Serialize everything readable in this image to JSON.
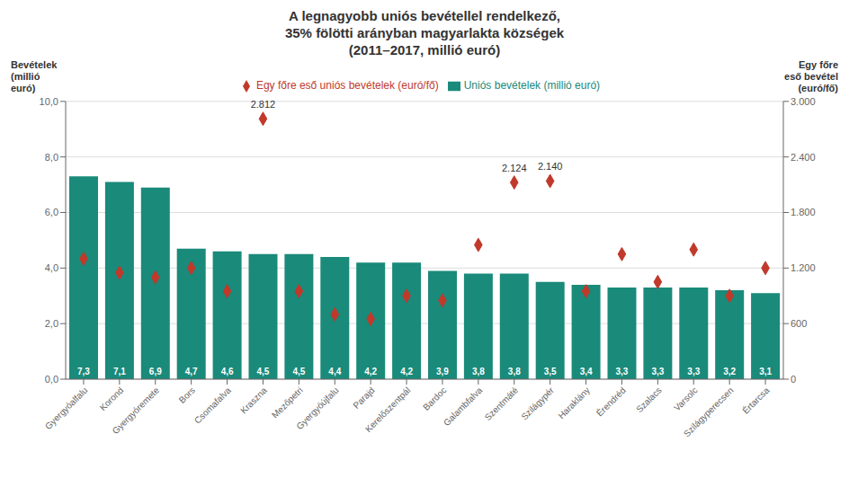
{
  "chart_data": {
    "type": "bar",
    "title": "A legnagyobb uniós bevétellel rendelkező,\n35% fölötti arányban magyarlakta községek\n(2011–2017, millió euró)",
    "categories": [
      "Gyergyóalfalu",
      "Korond",
      "Gyergyóremete",
      "Bors",
      "Csomafalva",
      "Kraszna",
      "Mezőpetri",
      "Gyergyóújfalu",
      "Parajd",
      "Kerelőszentpál",
      "Bardoc",
      "Galambfalva",
      "Szentmáté",
      "Szilágypér",
      "Haraklány",
      "Érendréd",
      "Szalacs",
      "Varsolc",
      "Szilágyperecsen",
      "Értarcsa"
    ],
    "series": [
      {
        "name": "Uniós bevételek (millió euró)",
        "type": "bar",
        "color": "#1a8a7a",
        "values": [
          7.3,
          7.1,
          6.9,
          4.7,
          4.6,
          4.5,
          4.5,
          4.4,
          4.2,
          4.2,
          3.9,
          3.8,
          3.8,
          3.5,
          3.4,
          3.3,
          3.3,
          3.3,
          3.2,
          3.1
        ],
        "value_labels": [
          "7,3",
          "7,1",
          "6,9",
          "4,7",
          "4,6",
          "4,5",
          "4,5",
          "4,4",
          "4,2",
          "4,2",
          "3,9",
          "3,8",
          "3,8",
          "3,5",
          "3,4",
          "3,3",
          "3,3",
          "3,3",
          "3,2",
          "3,1"
        ]
      },
      {
        "name": "Egy főre eső uniós bevételek (euró/fő)",
        "type": "scatter",
        "marker": "diamond",
        "color": "#c0392b",
        "axis": "y2",
        "values": [
          1300,
          1150,
          1100,
          1200,
          950,
          2812,
          950,
          700,
          650,
          900,
          850,
          1450,
          2124,
          2140,
          950,
          1350,
          1050,
          1400,
          900,
          1200
        ]
      }
    ],
    "data_labels": true,
    "annotations": [
      {
        "category": "Kraszna",
        "value": 2812,
        "label": "2.812"
      },
      {
        "category": "Szentmáté",
        "value": 2124,
        "label": "2.124"
      },
      {
        "category": "Szilágypér",
        "value": 2140,
        "label": "2.140"
      }
    ],
    "ylabel": "Bevételek\n(millió\neuró)",
    "y2label": "Egy főre\neső bevétel\n(euró/fő)",
    "ylim": [
      0,
      10.0
    ],
    "yticks": [
      {
        "value": 0.0,
        "label": "0,0"
      },
      {
        "value": 2.0,
        "label": "2,0"
      },
      {
        "value": 4.0,
        "label": "4,0"
      },
      {
        "value": 6.0,
        "label": "6,0"
      },
      {
        "value": 8.0,
        "label": "8,0"
      },
      {
        "value": 10.0,
        "label": "10,0"
      }
    ],
    "y2lim": [
      0,
      3000
    ],
    "y2ticks": [
      0,
      600,
      {
        "value": 1200,
        "label": "1.200"
      },
      {
        "value": 1800,
        "label": "1.800"
      },
      {
        "value": 2400,
        "label": "2.400"
      },
      {
        "value": 3000,
        "label": "3.000"
      }
    ],
    "grid": true,
    "legend": "top"
  }
}
